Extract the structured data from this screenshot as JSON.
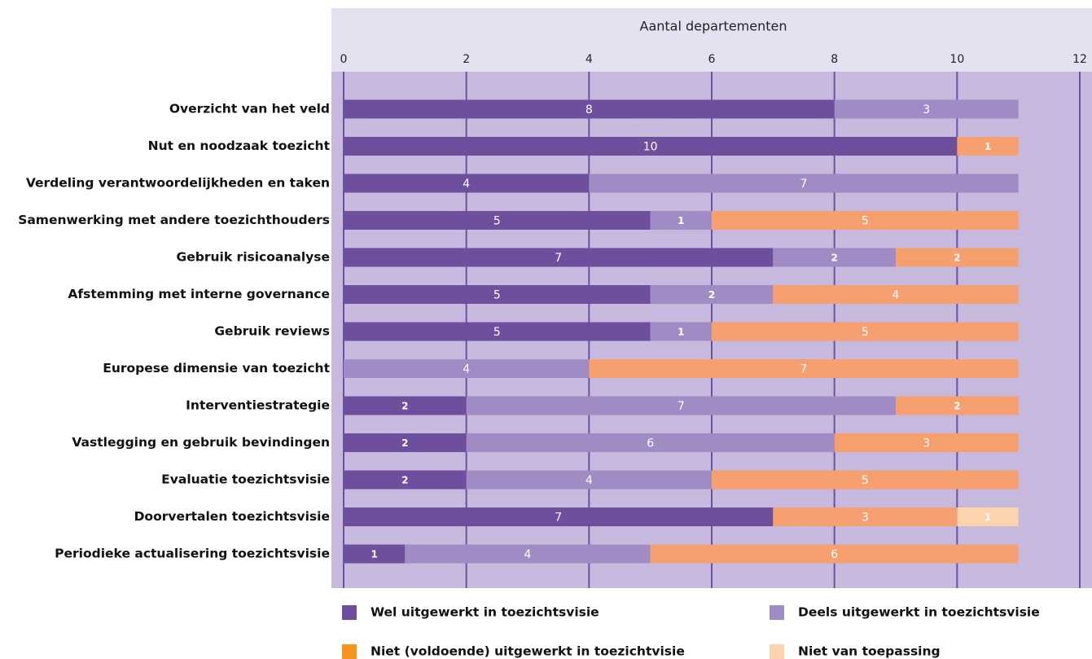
{
  "chart_data": {
    "type": "stacked-barh",
    "xlabel": "Aantal departementen",
    "categories": [
      "Overzicht van het veld",
      "Nut en noodzaak toezicht",
      "Verdeling verantwoordelijkheden en taken",
      "Samenwerking met andere toezichthouders",
      "Gebruik risicoanalyse",
      "Afstemming met interne governance",
      "Gebruik reviews",
      "Europese dimensie van toezicht",
      "Interventiestrategie",
      "Vastlegging en gebruik bevindingen",
      "Evaluatie toezichtsvisie",
      "Doorvertalen toezichtsvisie",
      "Periodieke actualisering toezichtsvisie"
    ],
    "series": [
      {
        "name": "Wel uitgewerkt in toezichtsvisie",
        "color": "#6e4f9e",
        "values": [
          8,
          10,
          4,
          5,
          7,
          5,
          5,
          null,
          2,
          2,
          2,
          7,
          1
        ]
      },
      {
        "name": "Deels uitgewerkt in toezichtsvisie",
        "color": "#a08bc4",
        "values": [
          3,
          null,
          7,
          1,
          2,
          2,
          1,
          4,
          7,
          6,
          4,
          null,
          4
        ]
      },
      {
        "name": "Niet (voldoende) uitgewerkt in toezichtvisie",
        "color": "#f6a06f",
        "legend_color": "#f7941d",
        "values": [
          null,
          1,
          null,
          5,
          2,
          4,
          5,
          7,
          2,
          3,
          5,
          3,
          6
        ]
      },
      {
        "name": "Niet van toepassing",
        "color": "#fcd3ad",
        "values": [
          null,
          null,
          null,
          null,
          null,
          null,
          null,
          null,
          null,
          null,
          null,
          1,
          null
        ]
      }
    ],
    "xlim": [
      0,
      12
    ],
    "xticks": [
      0,
      2,
      4,
      6,
      8,
      10,
      12
    ],
    "grid": true
  }
}
